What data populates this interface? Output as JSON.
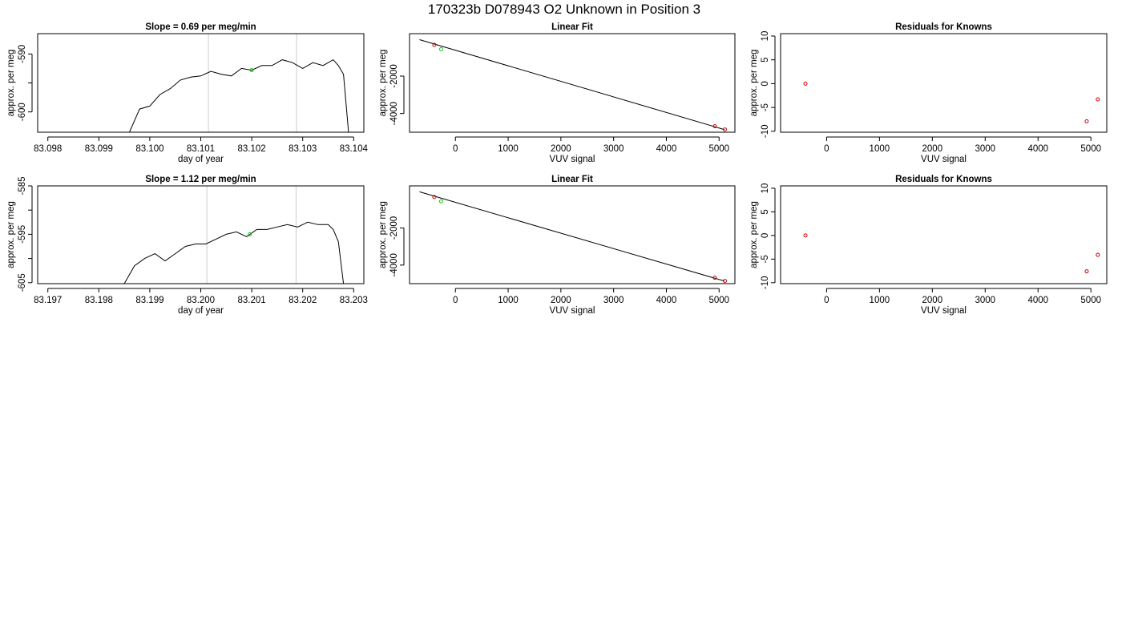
{
  "figure": {
    "title": "170323b      D078943   O2 Unknown in Position  3",
    "colors": {
      "trace": "#000000",
      "known_point": "#cc0000",
      "unknown_point": "#00cc00",
      "cursor_line": "#cccccc",
      "frame": "#000000"
    }
  },
  "chart_data": [
    {
      "type": "line",
      "title": "Slope =  0.69  per meg/min",
      "xlabel": "day of year",
      "ylabel": "approx. per meg",
      "xlim": [
        83.0978,
        83.1042
      ],
      "ylim": [
        -603.5,
        -586.5
      ],
      "xticks": [
        83.098,
        83.099,
        83.1,
        83.101,
        83.102,
        83.103,
        83.104
      ],
      "xtick_labels": [
        "83.098",
        "83.099",
        "83.100",
        "83.101",
        "83.102",
        "83.103",
        "83.104"
      ],
      "yticks": [
        -600,
        -595,
        -590,
        -585
      ],
      "ytick_labels": [
        "-600",
        "",
        "-590",
        ""
      ],
      "vlines": [
        83.10115,
        83.10288
      ],
      "series": [
        {
          "values_x": [
            83.0996,
            83.0998,
            83.1,
            83.1002,
            83.1004,
            83.1006,
            83.1008,
            83.101,
            83.1012,
            83.1014,
            83.1016,
            83.1018,
            83.102,
            83.1022,
            83.1024,
            83.1026,
            83.1028,
            83.103,
            83.1032,
            83.1034,
            83.1036,
            83.1037,
            83.1038,
            83.1039
          ],
          "values_y": [
            -603.5,
            -599.5,
            -599.0,
            -597.0,
            -596.0,
            -594.5,
            -594.0,
            -593.8,
            -593.0,
            -593.5,
            -593.8,
            -592.5,
            -592.8,
            -592.0,
            -592.0,
            -591.0,
            -591.5,
            -592.5,
            -591.5,
            -592.0,
            -591.0,
            -592.0,
            -593.5,
            -603.5
          ]
        }
      ],
      "unknown_point": {
        "x": 83.102,
        "y": -592.8
      }
    },
    {
      "type": "scatter",
      "title": "Linear Fit",
      "xlabel": "VUV signal",
      "ylabel": "approx. per meg",
      "xlim": [
        -870,
        5300
      ],
      "ylim": [
        -5000,
        270
      ],
      "xticks": [
        0,
        1000,
        2000,
        3000,
        4000,
        5000
      ],
      "xtick_labels": [
        "0",
        "1000",
        "2000",
        "3000",
        "4000",
        "5000"
      ],
      "yticks": [
        -4000,
        -2000
      ],
      "ytick_labels": [
        "-4000",
        "-2000"
      ],
      "fit_line": {
        "x": [
          -680,
          5100
        ],
        "y": [
          -50,
          -4860
        ]
      },
      "knowns": {
        "x": [
          -400,
          4920,
          5110
        ],
        "y": [
          -330,
          -4680,
          -4855
        ]
      },
      "unknown": {
        "x": -270,
        "y": -560
      }
    },
    {
      "type": "scatter",
      "title": "Residuals for Knowns",
      "xlabel": "VUV signal",
      "ylabel": "approx. per meg",
      "xlim": [
        -870,
        5300
      ],
      "ylim": [
        -10.2,
        10.5
      ],
      "xticks": [
        0,
        1000,
        2000,
        3000,
        4000,
        5000
      ],
      "xtick_labels": [
        "0",
        "1000",
        "2000",
        "3000",
        "4000",
        "5000"
      ],
      "yticks": [
        -10,
        -5,
        0,
        5,
        10
      ],
      "ytick_labels": [
        "-10",
        "-5",
        "0",
        "5",
        "10"
      ],
      "knowns": {
        "x": [
          -400,
          4920,
          5130
        ],
        "y": [
          0.0,
          -7.9,
          -3.3
        ]
      }
    },
    {
      "type": "line",
      "title": "Slope =  1.12  per meg/min",
      "xlabel": "day of year",
      "ylabel": "approx. per meg",
      "xlim": [
        83.1968,
        83.2032
      ],
      "ylim": [
        -605.2,
        -585.0
      ],
      "xticks": [
        83.197,
        83.198,
        83.199,
        83.2,
        83.201,
        83.202,
        83.203
      ],
      "xtick_labels": [
        "83.197",
        "83.198",
        "83.199",
        "83.200",
        "83.201",
        "83.202",
        "83.203"
      ],
      "yticks": [
        -605,
        -600,
        -595,
        -590,
        -585
      ],
      "ytick_labels": [
        "-605",
        "",
        "-595",
        "",
        "-585"
      ],
      "vlines": [
        83.20012,
        83.20187
      ],
      "series": [
        {
          "values_x": [
            83.1985,
            83.1987,
            83.1989,
            83.1991,
            83.1993,
            83.1995,
            83.1997,
            83.1999,
            83.2001,
            83.2003,
            83.2005,
            83.2007,
            83.2009,
            83.2011,
            83.2013,
            83.2015,
            83.2017,
            83.2019,
            83.2021,
            83.2023,
            83.2025,
            83.2026,
            83.2027,
            83.2028
          ],
          "values_y": [
            -605.2,
            -601.5,
            -600.0,
            -599.0,
            -600.5,
            -599.0,
            -597.5,
            -597.0,
            -597.0,
            -596.0,
            -595.0,
            -594.5,
            -595.5,
            -594.0,
            -594.0,
            -593.5,
            -593.0,
            -593.5,
            -592.5,
            -593.0,
            -593.0,
            -594.0,
            -596.5,
            -605.2
          ]
        }
      ],
      "unknown_point": {
        "x": 83.20096,
        "y": -595.0
      }
    },
    {
      "type": "scatter",
      "title": "Linear Fit",
      "xlabel": "VUV signal",
      "ylabel": "approx. per meg",
      "xlim": [
        -870,
        5300
      ],
      "ylim": [
        -5000,
        270
      ],
      "xticks": [
        0,
        1000,
        2000,
        3000,
        4000,
        5000
      ],
      "xtick_labels": [
        "0",
        "1000",
        "2000",
        "3000",
        "4000",
        "5000"
      ],
      "yticks": [
        -4000,
        -2000
      ],
      "ytick_labels": [
        "-4000",
        "-2000"
      ],
      "fit_line": {
        "x": [
          -680,
          5100
        ],
        "y": [
          -50,
          -4860
        ]
      },
      "knowns": {
        "x": [
          -400,
          4920,
          5110
        ],
        "y": [
          -330,
          -4680,
          -4855
        ]
      },
      "unknown": {
        "x": -270,
        "y": -560
      }
    },
    {
      "type": "scatter",
      "title": "Residuals for Knowns",
      "xlabel": "VUV signal",
      "ylabel": "approx. per meg",
      "xlim": [
        -870,
        5300
      ],
      "ylim": [
        -10.2,
        10.5
      ],
      "xticks": [
        0,
        1000,
        2000,
        3000,
        4000,
        5000
      ],
      "xtick_labels": [
        "0",
        "1000",
        "2000",
        "3000",
        "4000",
        "5000"
      ],
      "yticks": [
        -10,
        -5,
        0,
        5,
        10
      ],
      "ytick_labels": [
        "-10",
        "-5",
        "0",
        "5",
        "10"
      ],
      "knowns": {
        "x": [
          -400,
          4920,
          5130
        ],
        "y": [
          0.0,
          -7.6,
          -4.1
        ]
      }
    }
  ]
}
